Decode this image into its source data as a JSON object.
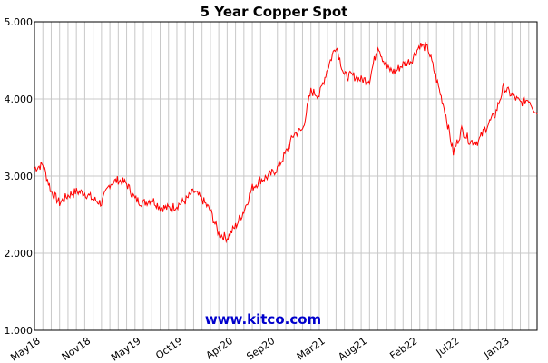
{
  "chart_data": {
    "type": "line",
    "title": "5 Year Copper Spot",
    "watermark": "www.kitco.com",
    "xlabel": "",
    "ylabel": "",
    "ylim": [
      1.0,
      5.0
    ],
    "y_ticks": [
      "1.000",
      "2.000",
      "3.000",
      "4.000",
      "5.000"
    ],
    "x_ticks": [
      "May18",
      "Nov18",
      "May19",
      "Oct19",
      "Apr20",
      "Sep20",
      "Mar21",
      "Aug21",
      "Feb22",
      "Jul22",
      "Jan23"
    ],
    "grid": true,
    "line_color": "#ff0000",
    "series": [
      {
        "x": [
          "May18",
          "Jun18",
          "Jul18",
          "Aug18",
          "Sep18",
          "Oct18",
          "Nov18",
          "Dec18",
          "Jan19",
          "Feb19",
          "Mar19",
          "Apr19",
          "May19",
          "Jun19",
          "Jul19",
          "Aug19",
          "Sep19",
          "Oct19",
          "Nov19",
          "Dec19",
          "Jan20",
          "Feb20",
          "Mar20",
          "Apr20",
          "May20",
          "Jun20",
          "Jul20",
          "Aug20",
          "Sep20",
          "Oct20",
          "Nov20",
          "Dec20",
          "Jan21",
          "Feb21",
          "Mar21",
          "Apr21",
          "May21",
          "Jun21",
          "Jul21",
          "Aug21",
          "Sep21",
          "Oct21",
          "Nov21",
          "Dec21",
          "Jan22",
          "Feb22",
          "Mar22",
          "Apr22",
          "May22",
          "Jun22",
          "Jul22",
          "Aug22",
          "Sep22",
          "Oct22",
          "Nov22",
          "Dec22",
          "Jan23",
          "Feb23",
          "Mar23",
          "Apr23",
          "May23"
        ],
        "values": [
          3.1,
          3.15,
          2.8,
          2.65,
          2.75,
          2.8,
          2.78,
          2.7,
          2.65,
          2.9,
          2.95,
          2.9,
          2.7,
          2.65,
          2.7,
          2.6,
          2.58,
          2.62,
          2.68,
          2.8,
          2.7,
          2.55,
          2.25,
          2.2,
          2.35,
          2.55,
          2.85,
          2.95,
          3.0,
          3.1,
          3.3,
          3.55,
          3.6,
          4.1,
          4.05,
          4.4,
          4.7,
          4.3,
          4.3,
          4.25,
          4.25,
          4.7,
          4.4,
          4.35,
          4.45,
          4.5,
          4.7,
          4.65,
          4.25,
          3.85,
          3.3,
          3.6,
          3.45,
          3.45,
          3.65,
          3.8,
          4.15,
          4.05,
          3.95,
          4.0,
          3.8
        ]
      }
    ]
  }
}
